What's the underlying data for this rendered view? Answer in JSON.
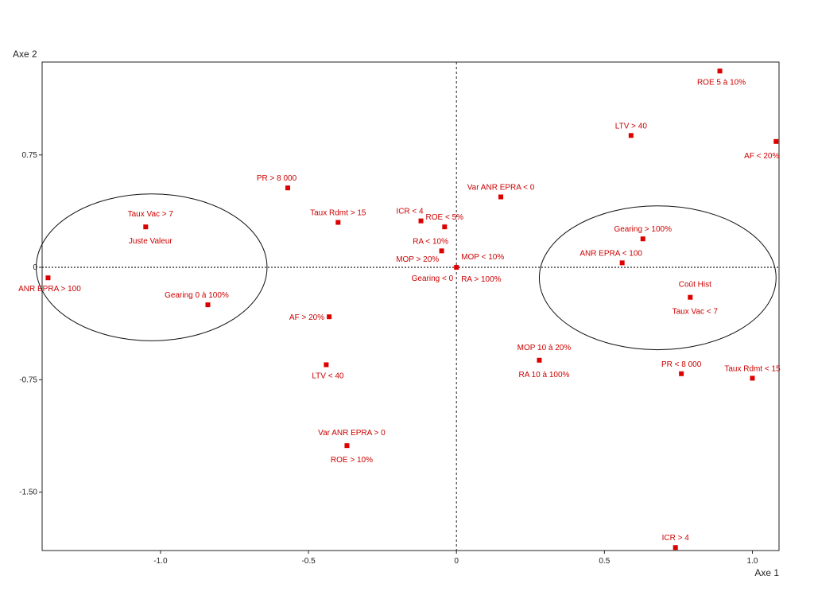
{
  "chart_data": {
    "type": "scatter",
    "title": "",
    "xlabel": "Axe 1",
    "ylabel": "Axe 2",
    "xlim": [
      -1.4,
      1.09
    ],
    "ylim": [
      -1.89,
      1.37
    ],
    "x_ticks": [
      {
        "value": -1.0,
        "label": "-1.0"
      },
      {
        "value": -0.5,
        "label": "-0.5"
      },
      {
        "value": 0,
        "label": "0"
      },
      {
        "value": 0.5,
        "label": "0.5"
      },
      {
        "value": 1.0,
        "label": "1.0"
      }
    ],
    "y_ticks": [
      {
        "value": 0.75,
        "label": "0.75"
      },
      {
        "value": 0,
        "label": "0"
      },
      {
        "value": -0.75,
        "label": "-0.75"
      },
      {
        "value": -1.5,
        "label": "-1.50"
      }
    ],
    "reference_lines": {
      "x": 0,
      "y": 0,
      "style": "dashed"
    },
    "marker_color": "#dd0000",
    "label_color": "#cc0000",
    "points": [
      {
        "x": 0.89,
        "y": 1.31,
        "labels": [
          "ROE 5 à 10%"
        ],
        "anchor": "below"
      },
      {
        "x": 0.59,
        "y": 0.88,
        "labels": [
          "LTV > 40"
        ],
        "anchor": "above"
      },
      {
        "x": 1.08,
        "y": 0.84,
        "labels": [
          "AF < 20%"
        ],
        "anchor": "below-left"
      },
      {
        "x": -0.57,
        "y": 0.53,
        "labels": [
          "PR > 8 000"
        ],
        "anchor": "above-left"
      },
      {
        "x": 0.15,
        "y": 0.47,
        "labels": [
          "Var ANR EPRA < 0"
        ],
        "anchor": "above"
      },
      {
        "x": -0.4,
        "y": 0.3,
        "labels": [
          "Taux Rdmt > 15"
        ],
        "anchor": "above"
      },
      {
        "x": -0.12,
        "y": 0.31,
        "labels": [
          "ICR < 4"
        ],
        "anchor": "above-left"
      },
      {
        "x": -1.05,
        "y": 0.27,
        "labels": [
          "Taux Vac > 7",
          "Juste Valeur"
        ],
        "anchor": "above-below"
      },
      {
        "x": -0.04,
        "y": 0.27,
        "labels": [
          "ROE < 5%"
        ],
        "anchor": "above"
      },
      {
        "x": 0.63,
        "y": 0.19,
        "labels": [
          "Gearing > 100%"
        ],
        "anchor": "above"
      },
      {
        "x": -0.05,
        "y": 0.11,
        "labels": [
          "RA < 10%"
        ],
        "anchor": "above-left"
      },
      {
        "x": 0.56,
        "y": 0.03,
        "labels": [
          "ANR EPRA < 100"
        ],
        "anchor": "above-left"
      },
      {
        "x": 0.0,
        "y": 0.0,
        "labels": [
          "MOP > 20%",
          "MOP < 10%",
          "Gearing < 0",
          "RA > 100%"
        ],
        "anchor": "cluster"
      },
      {
        "x": -1.38,
        "y": -0.07,
        "labels": [
          "ANR EPRA > 100"
        ],
        "anchor": "below"
      },
      {
        "x": 0.79,
        "y": -0.2,
        "labels": [
          "Coût Hist",
          "Taux Vac < 7"
        ],
        "anchor": "above-below"
      },
      {
        "x": -0.84,
        "y": -0.25,
        "labels": [
          "Gearing 0 à 100%"
        ],
        "anchor": "above-left"
      },
      {
        "x": -0.43,
        "y": -0.33,
        "labels": [
          "AF > 20%"
        ],
        "anchor": "left"
      },
      {
        "x": 0.28,
        "y": -0.62,
        "labels": [
          "MOP 10 à 20%",
          "RA 10 à 100%"
        ],
        "anchor": "above-below"
      },
      {
        "x": -0.44,
        "y": -0.65,
        "labels": [
          "LTV < 40"
        ],
        "anchor": "below"
      },
      {
        "x": 0.76,
        "y": -0.71,
        "labels": [
          "PR < 8 000"
        ],
        "anchor": "above"
      },
      {
        "x": 1.0,
        "y": -0.74,
        "labels": [
          "Taux Rdmt < 15"
        ],
        "anchor": "above"
      },
      {
        "x": -0.37,
        "y": -1.19,
        "labels": [
          "Var ANR EPRA > 0",
          "ROE > 10%"
        ],
        "anchor": "above-below"
      },
      {
        "x": 0.74,
        "y": -1.87,
        "labels": [
          "ICR > 4"
        ],
        "anchor": "above"
      }
    ],
    "ellipses": [
      {
        "center": [
          -1.03,
          0.0
        ],
        "radii": [
          0.39,
          0.49
        ]
      },
      {
        "center": [
          0.68,
          -0.07
        ],
        "radii": [
          0.4,
          0.48
        ]
      }
    ],
    "legend": "none",
    "grid": false
  }
}
